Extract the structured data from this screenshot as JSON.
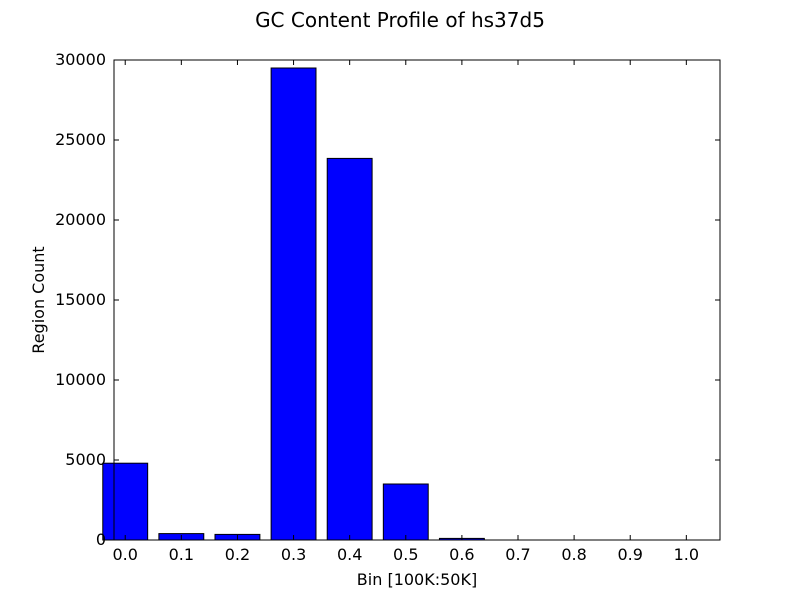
{
  "chart_data": {
    "type": "bar",
    "title": "GC Content Profile of hs37d5",
    "xlabel": "Bin [100K:50K]",
    "ylabel": "Region Count",
    "categories": [
      "0.0",
      "0.1",
      "0.2",
      "0.3",
      "0.4",
      "0.5",
      "0.6",
      "0.7",
      "0.8",
      "0.9",
      "1.0"
    ],
    "values": [
      4800,
      400,
      350,
      29500,
      23850,
      3500,
      100,
      0,
      0,
      0,
      0
    ],
    "ylim": [
      0,
      30000
    ],
    "yticks": [
      "0",
      "5000",
      "10000",
      "15000",
      "20000",
      "25000",
      "30000"
    ],
    "bar_color": "#0000ff",
    "grid": false
  }
}
